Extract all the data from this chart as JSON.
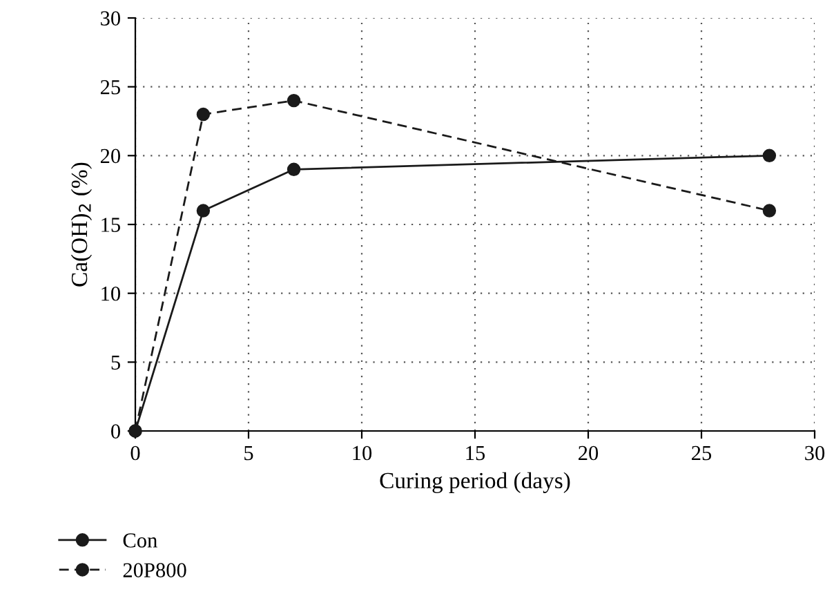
{
  "chart_data": {
    "type": "line",
    "xlabel": "Curing period (days)",
    "ylabel": "Ca(OH)$_{2}$ (%)",
    "xlim": [
      0,
      30
    ],
    "xticks": [
      0,
      5,
      10,
      15,
      20,
      25,
      30
    ],
    "ylim": [
      0,
      30
    ],
    "yticks": [
      0,
      5,
      10,
      15,
      20,
      25,
      30
    ],
    "grid": true,
    "legend": "bottom left",
    "marker": "circle",
    "series": [
      {
        "name": "Con",
        "color": "#1a1a1a",
        "x": [
          0,
          3,
          7,
          28
        ],
        "values": [
          0,
          16,
          19,
          20
        ],
        "line_style": "solid"
      },
      {
        "name": "20P800",
        "color": "#1a1a1a",
        "x": [
          0,
          3,
          7,
          28
        ],
        "values": [
          0,
          23,
          24,
          16
        ],
        "line_style": "dashed"
      }
    ]
  }
}
